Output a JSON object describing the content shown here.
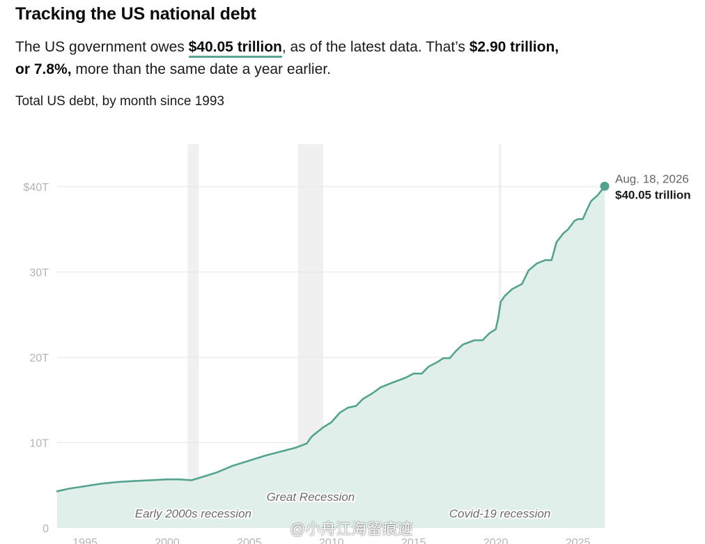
{
  "headline": "Tracking the US national debt",
  "summary": {
    "prefix": "The US government owes ",
    "amount": "$40.05 trillion",
    "middle": ", as of the latest data. That’s ",
    "change": "$2.90 trillion, or 7.8%,",
    "suffix": " more than the same date a year earlier."
  },
  "chart_data": {
    "type": "area",
    "title": "Total US debt, by month since 1993",
    "xlabel": "",
    "ylabel": "",
    "xlim": [
      1993.3,
      2026.63
    ],
    "ylim": [
      0,
      40
    ],
    "y_ticks": [
      0,
      10,
      20,
      30,
      40
    ],
    "y_tick_labels": [
      "0",
      "10T",
      "20T",
      "30T",
      "$40T"
    ],
    "x_ticks": [
      1995,
      2000,
      2005,
      2010,
      2015,
      2020,
      2025
    ],
    "x_tick_labels": [
      "1995",
      "2000",
      "2005",
      "2010",
      "2015",
      "2020",
      "2025"
    ],
    "grid": true,
    "colors": {
      "line": "#54a391",
      "fill": "#e0efea",
      "recession": "#f0f0f0",
      "grid": "#e6e6e6"
    },
    "recessions": [
      {
        "label": "Early 2000s recession",
        "start": 2001.25,
        "end": 2001.92
      },
      {
        "label": "Great Recession",
        "start": 2007.96,
        "end": 2009.5
      },
      {
        "label": "Covid-19 recession",
        "start": 2020.17,
        "end": 2020.33
      }
    ],
    "series": [
      {
        "values_unit": "trillions of US dollars",
        "x": [
          1993.3,
          1994.0,
          1995.0,
          1996.0,
          1997.0,
          1998.0,
          1999.0,
          2000.0,
          2000.7,
          2001.5,
          2002.0,
          2003.0,
          2004.0,
          2005.0,
          2006.0,
          2007.0,
          2007.8,
          2008.5,
          2008.75,
          2008.85,
          2009.5,
          2010.0,
          2010.5,
          2011.0,
          2011.5,
          2011.9,
          2012.5,
          2013.0,
          2013.8,
          2014.5,
          2015.0,
          2015.5,
          2015.9,
          2016.5,
          2016.8,
          2017.2,
          2017.6,
          2018.0,
          2018.7,
          2019.2,
          2019.6,
          2020.0,
          2020.15,
          2020.3,
          2020.55,
          2021.0,
          2021.6,
          2022.0,
          2022.5,
          2023.0,
          2023.4,
          2023.7,
          2024.1,
          2024.4,
          2024.8,
          2025.0,
          2025.3,
          2025.5,
          2025.8,
          2026.2,
          2026.63
        ],
        "y": [
          4.3,
          4.6,
          4.9,
          5.2,
          5.4,
          5.5,
          5.6,
          5.7,
          5.7,
          5.6,
          5.9,
          6.5,
          7.3,
          7.9,
          8.5,
          9.0,
          9.4,
          9.9,
          10.6,
          10.8,
          11.8,
          12.4,
          13.5,
          14.1,
          14.3,
          15.1,
          15.8,
          16.5,
          17.1,
          17.6,
          18.1,
          18.1,
          18.9,
          19.5,
          19.9,
          19.9,
          20.8,
          21.5,
          22.0,
          22.0,
          22.8,
          23.3,
          24.6,
          26.5,
          27.2,
          28.0,
          28.6,
          30.2,
          31.0,
          31.4,
          31.4,
          33.5,
          34.5,
          35.0,
          36.0,
          36.2,
          36.2,
          37.1,
          38.3,
          39.0,
          40.05
        ]
      }
    ],
    "annotation": {
      "date": "Aug. 18, 2026",
      "value": "$40.05 trillion"
    }
  },
  "watermark": "@小舟江海留痕迹"
}
